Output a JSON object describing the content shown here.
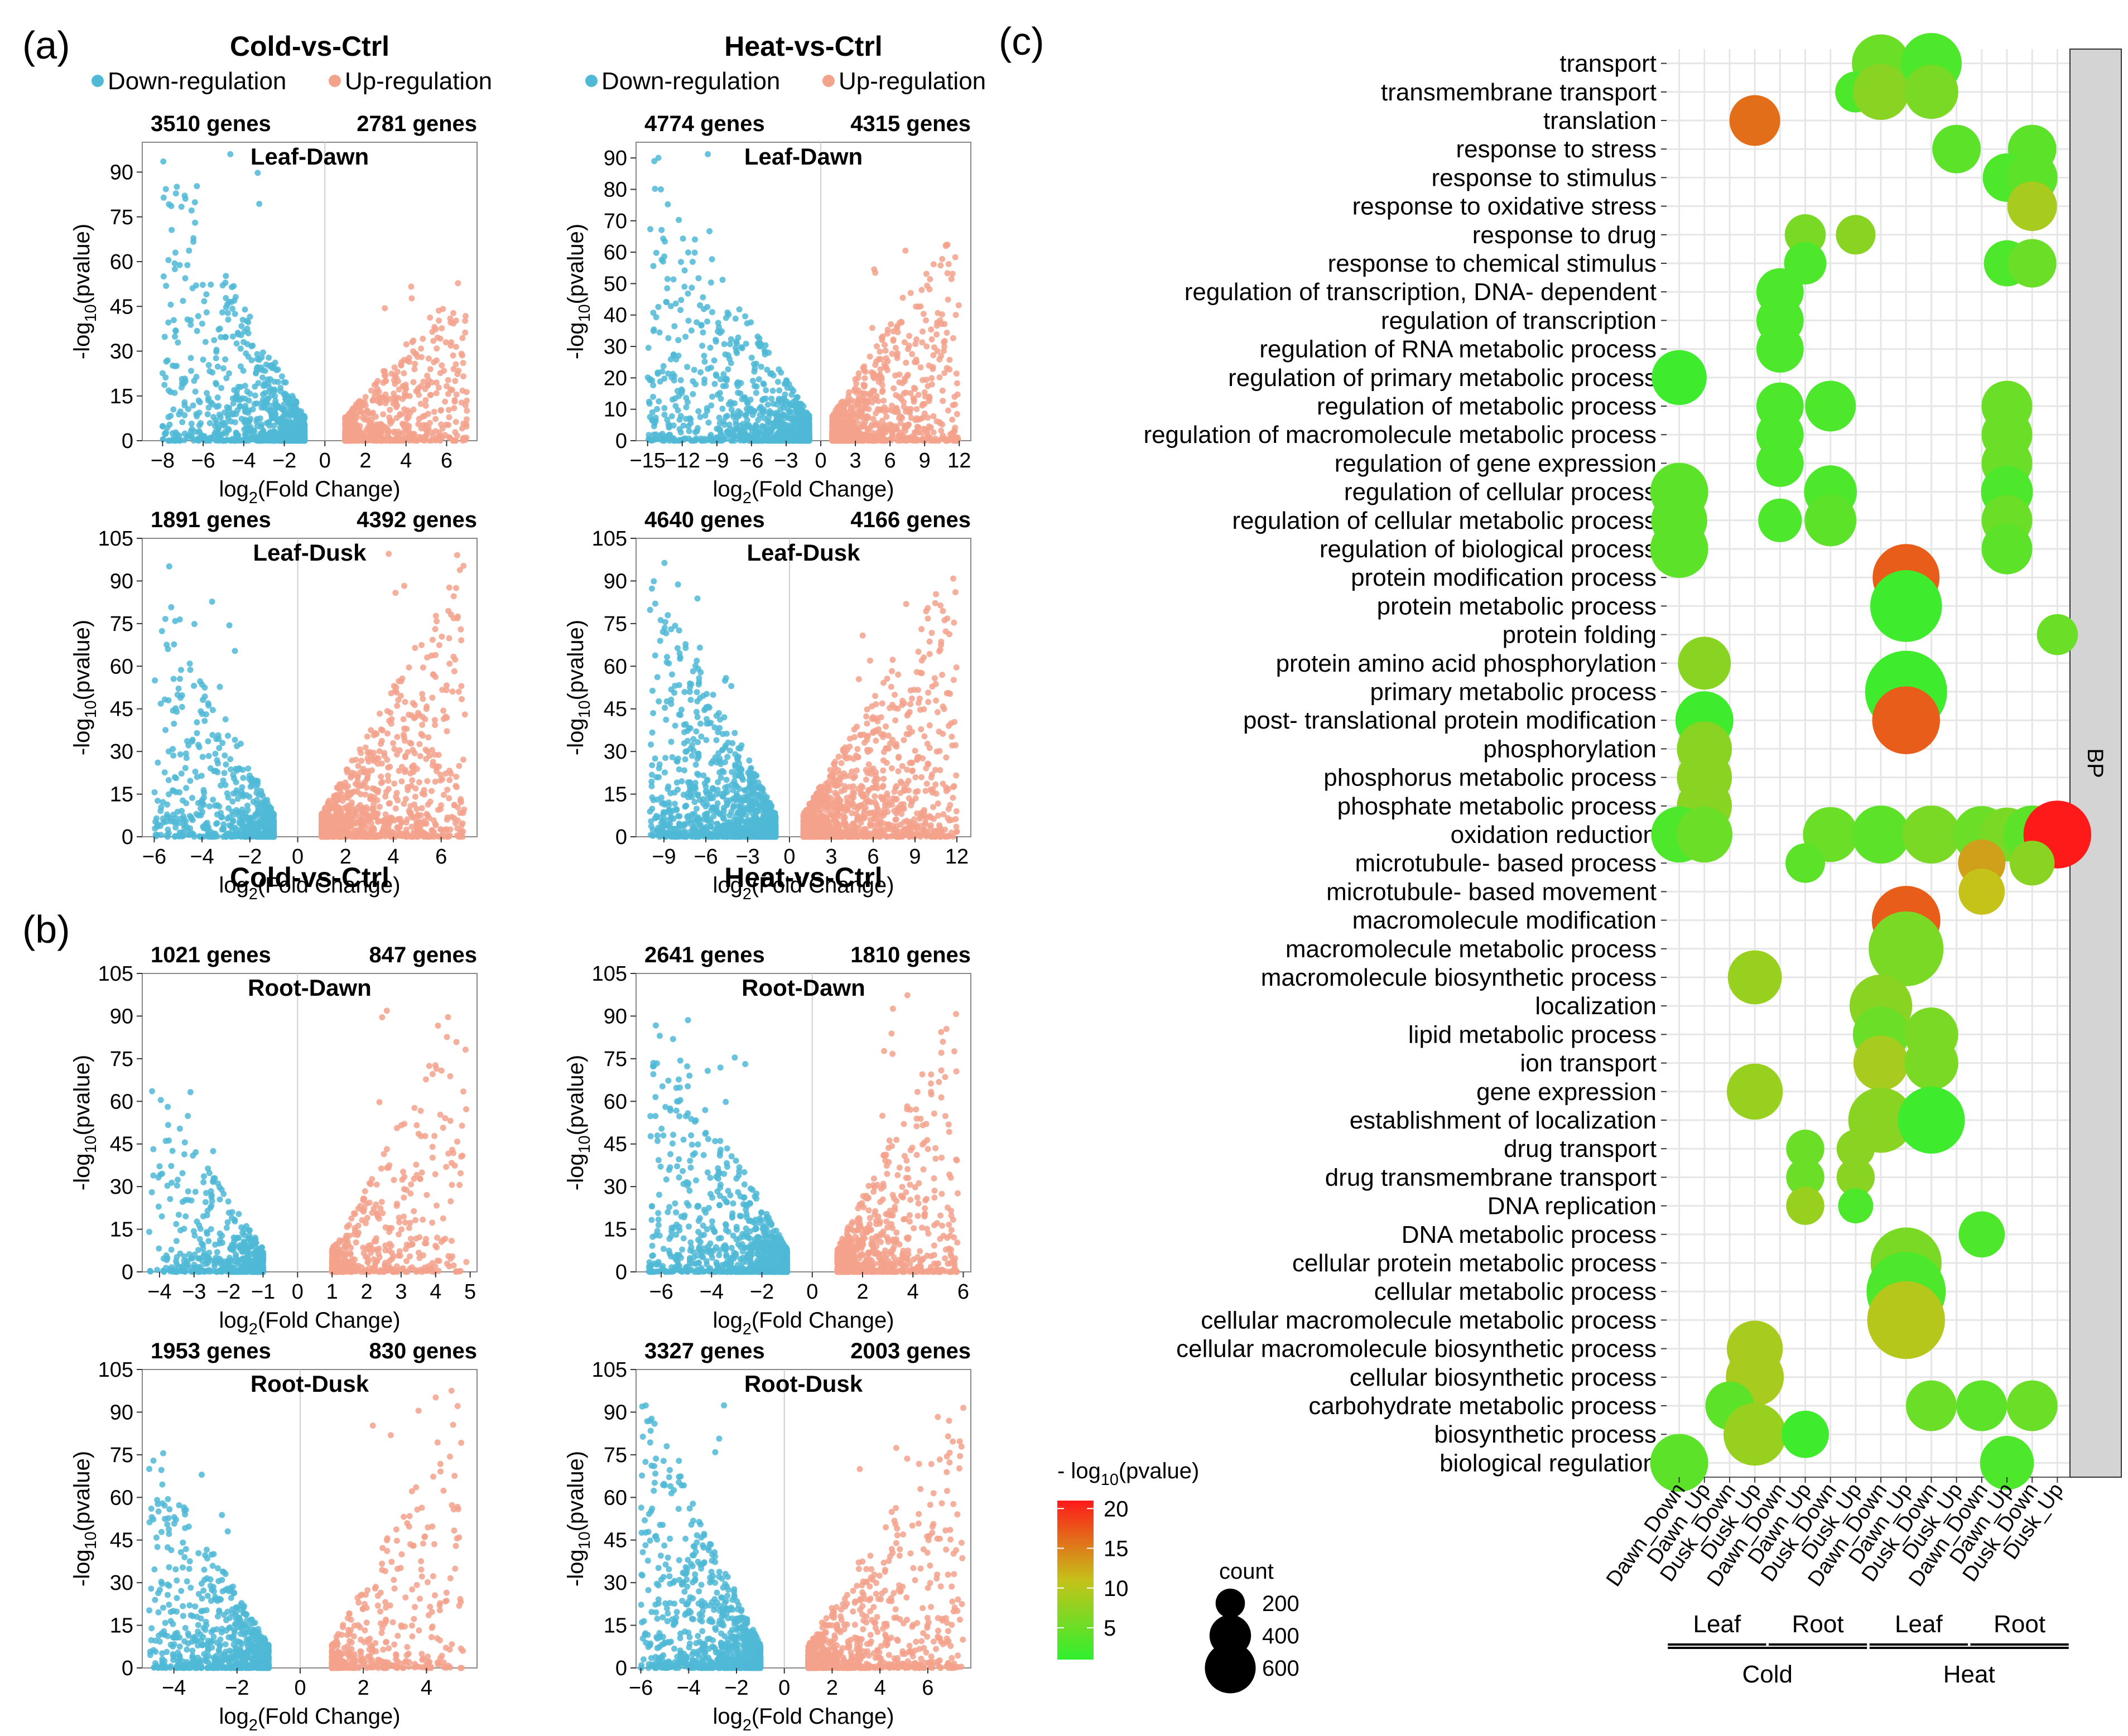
{
  "colors": {
    "down": "#4fb9d6",
    "up": "#f3a28c",
    "frame": "#888888",
    "zero_line": "#cfcfcf",
    "grid": "#e6e6e6",
    "strip": "#d4d4d4",
    "scale_low": "#2ff02f",
    "scale_mid": "#c5c21a",
    "scale_high": "#ff1a1a"
  },
  "panels": {
    "a": {
      "label": "(a)"
    },
    "b": {
      "label": "(b)"
    },
    "c": {
      "label": "(c)"
    }
  },
  "legend_a": {
    "down": "Down-regulation",
    "up": "Up-regulation"
  },
  "chart_data": [
    {
      "type": "scatter",
      "panel": "a",
      "header": "Cold-vs-Ctrl",
      "title": "Leaf-Dawn",
      "down_count": "3510 genes",
      "up_count": "2781 genes",
      "xlabel": "log2(Fold Change)",
      "ylabel": "-log10(pvalue)",
      "xlim": [
        -9,
        7.5
      ],
      "ylim": [
        0,
        100
      ],
      "xticks": [
        -8,
        -6,
        -4,
        -2,
        0,
        2,
        4,
        6
      ],
      "yticks": [
        0,
        15,
        30,
        45,
        60,
        75,
        90
      ],
      "xmin_mag": 1,
      "down_xmax": 8,
      "up_xmax": 7,
      "down_peak": 98,
      "up_peak": 54,
      "down_n": 900,
      "up_n": 700,
      "seed": 11
    },
    {
      "type": "scatter",
      "panel": "a",
      "header": "Heat-vs-Ctrl",
      "title": "Leaf-Dawn",
      "down_count": "4774 genes",
      "up_count": "4315 genes",
      "xlabel": "log2(Fold Change)",
      "ylabel": "-log10(pvalue)",
      "xlim": [
        -16,
        13
      ],
      "ylim": [
        0,
        95
      ],
      "xticks": [
        -15,
        -12,
        -9,
        -6,
        -3,
        0,
        3,
        6,
        9,
        12
      ],
      "yticks": [
        0,
        10,
        20,
        30,
        40,
        50,
        60,
        70,
        80,
        90
      ],
      "xmin_mag": 1,
      "down_xmax": 15,
      "up_xmax": 12,
      "down_peak": 92,
      "up_peak": 72,
      "down_n": 1000,
      "up_n": 950,
      "seed": 22
    },
    {
      "type": "scatter",
      "panel": "a",
      "header": "",
      "title": "Leaf-Dusk",
      "down_count": "1891 genes",
      "up_count": "4392 genes",
      "xlabel": "log2(Fold Change)",
      "ylabel": "-log10(pvalue)",
      "xlim": [
        -6.5,
        7.5
      ],
      "ylim": [
        0,
        105
      ],
      "xticks": [
        -6,
        -4,
        -2,
        0,
        2,
        4,
        6
      ],
      "yticks": [
        0,
        15,
        30,
        45,
        60,
        75,
        90,
        105
      ],
      "xmin_mag": 1,
      "down_xmax": 6,
      "up_xmax": 7,
      "down_peak": 100,
      "up_peak": 100,
      "down_n": 650,
      "up_n": 1100,
      "seed": 33
    },
    {
      "type": "scatter",
      "panel": "a",
      "header": "",
      "title": "Leaf-Dusk",
      "down_count": "4640 genes",
      "up_count": "4166 genes",
      "xlabel": "log2(Fold Change)",
      "ylabel": "-log10(pvalue)",
      "xlim": [
        -11,
        13
      ],
      "ylim": [
        0,
        105
      ],
      "xticks": [
        -9,
        -6,
        -3,
        0,
        3,
        6,
        9,
        12
      ],
      "yticks": [
        0,
        15,
        30,
        45,
        60,
        75,
        90,
        105
      ],
      "xmin_mag": 1,
      "down_xmax": 10,
      "up_xmax": 12,
      "down_peak": 100,
      "up_peak": 100,
      "down_n": 1300,
      "up_n": 1300,
      "seed": 44
    },
    {
      "type": "scatter",
      "panel": "b",
      "header": "Cold-vs-Ctrl",
      "title": "Root-Dawn",
      "down_count": "1021 genes",
      "up_count": "847 genes",
      "xlabel": "log2(Fold Change)",
      "ylabel": "-log10(pvalue)",
      "xlim": [
        -4.5,
        5.2
      ],
      "ylim": [
        0,
        105
      ],
      "xticks": [
        -4,
        -3,
        -2,
        -1,
        0,
        1,
        2,
        3,
        4,
        5
      ],
      "yticks": [
        0,
        15,
        30,
        45,
        60,
        75,
        90,
        105
      ],
      "xmin_mag": 1,
      "down_xmax": 4.3,
      "up_xmax": 4.9,
      "down_peak": 67,
      "up_peak": 100,
      "down_n": 500,
      "up_n": 450,
      "seed": 55
    },
    {
      "type": "scatter",
      "panel": "b",
      "header": "Heat-vs-Ctrl",
      "title": "Root-Dawn",
      "down_count": "2641 genes",
      "up_count": "1810 genes",
      "xlabel": "log2(Fold Change)",
      "ylabel": "-log10(pvalue)",
      "xlim": [
        -7,
        6.3
      ],
      "ylim": [
        0,
        105
      ],
      "xticks": [
        -6,
        -4,
        -2,
        0,
        2,
        4,
        6
      ],
      "yticks": [
        0,
        15,
        30,
        45,
        60,
        75,
        90,
        105
      ],
      "xmin_mag": 1,
      "down_xmax": 6.5,
      "up_xmax": 5.8,
      "down_peak": 100,
      "up_peak": 100,
      "down_n": 1000,
      "up_n": 800,
      "seed": 66
    },
    {
      "type": "scatter",
      "panel": "b",
      "header": "",
      "title": "Root-Dusk",
      "down_count": "1953 genes",
      "up_count": "830 genes",
      "xlabel": "log2(Fold Change)",
      "ylabel": "-log10(pvalue)",
      "xlim": [
        -5,
        5.6
      ],
      "ylim": [
        0,
        105
      ],
      "xticks": [
        -4,
        -2,
        0,
        2,
        4
      ],
      "yticks": [
        0,
        15,
        30,
        45,
        60,
        75,
        90,
        105
      ],
      "xmin_mag": 1,
      "down_xmax": 4.8,
      "up_xmax": 5.2,
      "down_peak": 78,
      "up_peak": 100,
      "down_n": 800,
      "up_n": 420,
      "seed": 77
    },
    {
      "type": "scatter",
      "panel": "b",
      "header": "",
      "title": "Root-Dusk",
      "down_count": "3327 genes",
      "up_count": "2003 genes",
      "xlabel": "log2(Fold Change)",
      "ylabel": "-log10(pvalue)",
      "xlim": [
        -6.2,
        7.8
      ],
      "ylim": [
        0,
        105
      ],
      "xticks": [
        -6,
        -4,
        -2,
        0,
        2,
        4,
        6
      ],
      "yticks": [
        0,
        15,
        30,
        45,
        60,
        75,
        90,
        105
      ],
      "xmin_mag": 1,
      "down_xmax": 6,
      "up_xmax": 7.5,
      "down_peak": 100,
      "up_peak": 100,
      "down_n": 1000,
      "up_n": 800,
      "seed": 88
    },
    {
      "type": "bubble",
      "panel": "c",
      "facet_label": "BP",
      "legend_title": "- log10(pvalue)",
      "color_ticks": [
        5,
        10,
        15,
        20
      ],
      "color_range": [
        1,
        21
      ],
      "size_title": "count",
      "size_ticks": [
        200,
        400,
        600
      ],
      "columns": [
        "Dawn_Down",
        "Dawn_Up",
        "Dusk_Down",
        "Dusk_Up",
        "Dawn_Down",
        "Dawn_Up",
        "Dusk_Down",
        "Dusk_Up",
        "Dawn_Down",
        "Dawn_Up",
        "Dusk_Down",
        "Dusk_Up",
        "Dawn_Down",
        "Dawn_Up",
        "Dusk_Down",
        "Dusk_Up"
      ],
      "groups": [
        {
          "label": "Leaf",
          "start": 0,
          "end": 3
        },
        {
          "label": "Root",
          "start": 4,
          "end": 7
        },
        {
          "label": "Leaf",
          "start": 8,
          "end": 11
        },
        {
          "label": "Root",
          "start": 12,
          "end": 15
        }
      ],
      "supergroups": [
        {
          "label": "Cold",
          "start": 0,
          "end": 7
        },
        {
          "label": "Heat",
          "start": 8,
          "end": 15
        }
      ],
      "terms": [
        "transport",
        "transmembrane transport",
        "translation",
        "response to stress",
        "response to stimulus",
        "response to oxidative stress",
        "response to drug",
        "response to chemical stimulus",
        "regulation of transcription, DNA- dependent",
        "regulation of transcription",
        "regulation of RNA metabolic process",
        "regulation of primary metabolic process",
        "regulation of metabolic process",
        "regulation of macromolecule metabolic process",
        "regulation of gene expression",
        "regulation of cellular process",
        "regulation of cellular metabolic process",
        "regulation of biological process",
        "protein modification process",
        "protein metabolic process",
        "protein folding",
        "protein amino acid phosphorylation",
        "primary metabolic process",
        "post- translational protein modification",
        "phosphorylation",
        "phosphorus metabolic process",
        "phosphate metabolic process",
        "oxidation reduction",
        "microtubule- based process",
        "microtubule- based movement",
        "macromolecule modification",
        "macromolecule metabolic process",
        "macromolecule biosynthetic process",
        "localization",
        "lipid metabolic process",
        "ion transport",
        "gene expression",
        "establishment of localization",
        "drug transport",
        "drug transmembrane transport",
        "DNA replication",
        "DNA metabolic process",
        "cellular protein metabolic process",
        "cellular metabolic process",
        "cellular macromolecule metabolic process",
        "cellular macromolecule biosynthetic process",
        "cellular biosynthetic process",
        "carbohydrate metabolic process",
        "biosynthetic process",
        "biological regulation"
      ],
      "points": [
        {
          "term": 0,
          "col": 8,
          "count": 300,
          "p": 5
        },
        {
          "term": 0,
          "col": 10,
          "count": 330,
          "p": 3
        },
        {
          "term": 1,
          "col": 7,
          "count": 150,
          "p": 3
        },
        {
          "term": 1,
          "col": 8,
          "count": 280,
          "p": 7
        },
        {
          "term": 1,
          "col": 10,
          "count": 260,
          "p": 6
        },
        {
          "term": 2,
          "col": 3,
          "count": 230,
          "p": 16
        },
        {
          "term": 3,
          "col": 11,
          "count": 210,
          "p": 4
        },
        {
          "term": 3,
          "col": 14,
          "count": 210,
          "p": 4
        },
        {
          "term": 4,
          "col": 13,
          "count": 210,
          "p": 3
        },
        {
          "term": 4,
          "col": 14,
          "count": 230,
          "p": 4
        },
        {
          "term": 5,
          "col": 14,
          "count": 220,
          "p": 9
        },
        {
          "term": 6,
          "col": 5,
          "count": 150,
          "p": 6
        },
        {
          "term": 6,
          "col": 7,
          "count": 140,
          "p": 7
        },
        {
          "term": 7,
          "col": 5,
          "count": 160,
          "p": 3
        },
        {
          "term": 7,
          "col": 13,
          "count": 190,
          "p": 3
        },
        {
          "term": 7,
          "col": 14,
          "count": 210,
          "p": 5
        },
        {
          "term": 8,
          "col": 4,
          "count": 200,
          "p": 3
        },
        {
          "term": 9,
          "col": 4,
          "count": 200,
          "p": 3
        },
        {
          "term": 10,
          "col": 4,
          "count": 200,
          "p": 3
        },
        {
          "term": 11,
          "col": 0,
          "count": 270,
          "p": 2
        },
        {
          "term": 12,
          "col": 4,
          "count": 200,
          "p": 3
        },
        {
          "term": 12,
          "col": 6,
          "count": 230,
          "p": 3
        },
        {
          "term": 12,
          "col": 13,
          "count": 230,
          "p": 5
        },
        {
          "term": 13,
          "col": 4,
          "count": 200,
          "p": 3
        },
        {
          "term": 13,
          "col": 13,
          "count": 230,
          "p": 5
        },
        {
          "term": 14,
          "col": 4,
          "count": 200,
          "p": 3
        },
        {
          "term": 14,
          "col": 13,
          "count": 230,
          "p": 5
        },
        {
          "term": 15,
          "col": 0,
          "count": 300,
          "p": 4
        },
        {
          "term": 15,
          "col": 6,
          "count": 250,
          "p": 3
        },
        {
          "term": 15,
          "col": 13,
          "count": 240,
          "p": 3
        },
        {
          "term": 16,
          "col": 0,
          "count": 280,
          "p": 4
        },
        {
          "term": 16,
          "col": 4,
          "count": 170,
          "p": 3
        },
        {
          "term": 16,
          "col": 6,
          "count": 240,
          "p": 4
        },
        {
          "term": 16,
          "col": 13,
          "count": 230,
          "p": 5
        },
        {
          "term": 17,
          "col": 0,
          "count": 300,
          "p": 4
        },
        {
          "term": 17,
          "col": 13,
          "count": 230,
          "p": 4
        },
        {
          "term": 18,
          "col": 9,
          "count": 400,
          "p": 17
        },
        {
          "term": 19,
          "col": 9,
          "count": 460,
          "p": 2
        },
        {
          "term": 20,
          "col": 15,
          "count": 150,
          "p": 5
        },
        {
          "term": 21,
          "col": 1,
          "count": 250,
          "p": 7
        },
        {
          "term": 22,
          "col": 9,
          "count": 600,
          "p": 2
        },
        {
          "term": 23,
          "col": 1,
          "count": 300,
          "p": 2
        },
        {
          "term": 23,
          "col": 9,
          "count": 410,
          "p": 17
        },
        {
          "term": 24,
          "col": 1,
          "count": 270,
          "p": 7
        },
        {
          "term": 25,
          "col": 1,
          "count": 270,
          "p": 7
        },
        {
          "term": 26,
          "col": 1,
          "count": 270,
          "p": 7
        },
        {
          "term": 27,
          "col": 0,
          "count": 280,
          "p": 3
        },
        {
          "term": 27,
          "col": 1,
          "count": 280,
          "p": 5
        },
        {
          "term": 27,
          "col": 6,
          "count": 270,
          "p": 5
        },
        {
          "term": 27,
          "col": 8,
          "count": 300,
          "p": 4
        },
        {
          "term": 27,
          "col": 10,
          "count": 300,
          "p": 6
        },
        {
          "term": 27,
          "col": 12,
          "count": 290,
          "p": 5
        },
        {
          "term": 27,
          "col": 13,
          "count": 260,
          "p": 6
        },
        {
          "term": 27,
          "col": 14,
          "count": 300,
          "p": 4
        },
        {
          "term": 27,
          "col": 15,
          "count": 410,
          "p": 21
        },
        {
          "term": 28,
          "col": 5,
          "count": 140,
          "p": 4
        },
        {
          "term": 28,
          "col": 12,
          "count": 200,
          "p": 13
        },
        {
          "term": 28,
          "col": 14,
          "count": 180,
          "p": 7
        },
        {
          "term": 29,
          "col": 12,
          "count": 190,
          "p": 11
        },
        {
          "term": 30,
          "col": 9,
          "count": 420,
          "p": 17
        },
        {
          "term": 31,
          "col": 9,
          "count": 500,
          "p": 6
        },
        {
          "term": 32,
          "col": 3,
          "count": 260,
          "p": 8
        },
        {
          "term": 33,
          "col": 8,
          "count": 350,
          "p": 7
        },
        {
          "term": 34,
          "col": 8,
          "count": 280,
          "p": 5
        },
        {
          "term": 34,
          "col": 10,
          "count": 260,
          "p": 6
        },
        {
          "term": 35,
          "col": 8,
          "count": 270,
          "p": 9
        },
        {
          "term": 35,
          "col": 10,
          "count": 260,
          "p": 6
        },
        {
          "term": 36,
          "col": 3,
          "count": 280,
          "p": 8
        },
        {
          "term": 37,
          "col": 8,
          "count": 380,
          "p": 7
        },
        {
          "term": 37,
          "col": 10,
          "count": 400,
          "p": 2
        },
        {
          "term": 38,
          "col": 5,
          "count": 130,
          "p": 5
        },
        {
          "term": 38,
          "col": 7,
          "count": 130,
          "p": 7
        },
        {
          "term": 39,
          "col": 5,
          "count": 130,
          "p": 5
        },
        {
          "term": 39,
          "col": 7,
          "count": 130,
          "p": 7
        },
        {
          "term": 40,
          "col": 5,
          "count": 130,
          "p": 8
        },
        {
          "term": 40,
          "col": 7,
          "count": 110,
          "p": 3
        },
        {
          "term": 41,
          "col": 12,
          "count": 190,
          "p": 3
        },
        {
          "term": 42,
          "col": 9,
          "count": 450,
          "p": 6
        },
        {
          "term": 43,
          "col": 9,
          "count": 560,
          "p": 3
        },
        {
          "term": 44,
          "col": 9,
          "count": 540,
          "p": 10
        },
        {
          "term": 45,
          "col": 3,
          "count": 280,
          "p": 9
        },
        {
          "term": 46,
          "col": 3,
          "count": 300,
          "p": 9
        },
        {
          "term": 47,
          "col": 2,
          "count": 210,
          "p": 4
        },
        {
          "term": 47,
          "col": 10,
          "count": 230,
          "p": 5
        },
        {
          "term": 47,
          "col": 12,
          "count": 230,
          "p": 4
        },
        {
          "term": 47,
          "col": 14,
          "count": 230,
          "p": 5
        },
        {
          "term": 48,
          "col": 3,
          "count": 350,
          "p": 8
        },
        {
          "term": 48,
          "col": 5,
          "count": 200,
          "p": 2
        },
        {
          "term": 49,
          "col": 0,
          "count": 300,
          "p": 4
        },
        {
          "term": 49,
          "col": 13,
          "count": 260,
          "p": 3
        }
      ]
    }
  ]
}
